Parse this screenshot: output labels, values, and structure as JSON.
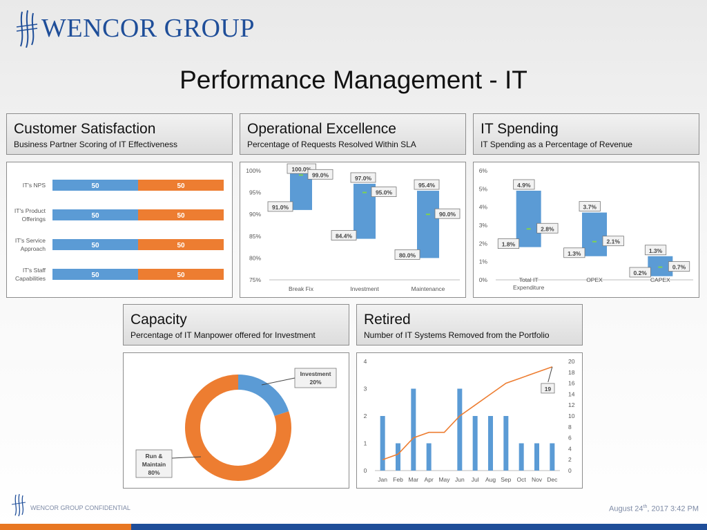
{
  "header": {
    "logo_text": "WENCOR GROUP",
    "title": "Performance Management - IT"
  },
  "cards": {
    "customer": {
      "title": "Customer Satisfaction",
      "subtitle": "Business Partner Scoring of IT Effectiveness"
    },
    "operational": {
      "title": "Operational Excellence",
      "subtitle": "Percentage of Requests Resolved Within SLA"
    },
    "spending": {
      "title": "IT Spending",
      "subtitle": "IT Spending as a Percentage of Revenue"
    },
    "capacity": {
      "title": "Capacity",
      "subtitle": "Percentage of IT Manpower offered for Investment"
    },
    "retired": {
      "title": "Retired",
      "subtitle": "Number of IT Systems Removed from the Portfolio"
    }
  },
  "footer": {
    "confidential": "WENCOR GROUP CONFIDENTIAL",
    "date_prefix": "August 24",
    "date_sup": "th",
    "date_suffix": ", 2017 3:42 PM"
  },
  "colors": {
    "blue": "#5b9bd5",
    "orange": "#ed7d31",
    "brand": "#1f4e99"
  },
  "chart_data": [
    {
      "id": "customer",
      "type": "bar",
      "orientation": "horizontal-stacked",
      "categories": [
        [
          "IT's NPS"
        ],
        [
          "IT's Product",
          "Offerings"
        ],
        [
          "IT's Service",
          "Approach"
        ],
        [
          "IT's Staff",
          "Capabilities"
        ]
      ],
      "series": [
        {
          "values": [
            50,
            50,
            50,
            50
          ],
          "labels": [
            "50",
            "50",
            "50",
            "50"
          ]
        },
        {
          "values": [
            50,
            50,
            50,
            50
          ],
          "labels": [
            "50",
            "50",
            "50",
            "50"
          ]
        }
      ]
    },
    {
      "id": "operational",
      "type": "bar",
      "orientation": "floating-range",
      "ylim": [
        75,
        100
      ],
      "yticks": [
        "75%",
        "80%",
        "85%",
        "90%",
        "95%",
        "100%"
      ],
      "categories": [
        "Break Fix",
        "Investment",
        "Maintenance"
      ],
      "high": [
        100.0,
        97.0,
        95.4
      ],
      "low": [
        91.0,
        84.4,
        80.0
      ],
      "mid": [
        99.0,
        95.0,
        90.0
      ],
      "high_labels": [
        "100.0%",
        "97.0%",
        "95.4%"
      ],
      "low_labels": [
        "91.0%",
        "84.4%",
        "80.0%"
      ],
      "mid_labels": [
        "99.0%",
        "95.0%",
        "90.0%"
      ]
    },
    {
      "id": "spending",
      "type": "bar",
      "orientation": "floating-range",
      "ylim": [
        0,
        6
      ],
      "yticks": [
        "0%",
        "1%",
        "2%",
        "3%",
        "4%",
        "5%",
        "6%"
      ],
      "categories": [
        [
          "Total IT",
          "Expenditure"
        ],
        [
          "OPEX"
        ],
        [
          "CAPEX"
        ]
      ],
      "high": [
        4.9,
        3.7,
        1.3
      ],
      "low": [
        1.8,
        1.3,
        0.2
      ],
      "mid": [
        2.8,
        2.1,
        0.7
      ],
      "high_labels": [
        "4.9%",
        "3.7%",
        "1.3%"
      ],
      "low_labels": [
        "1.8%",
        "1.3%",
        "0.2%"
      ],
      "mid_labels": [
        "2.8%",
        "2.1%",
        "0.7%"
      ]
    },
    {
      "id": "capacity",
      "type": "pie",
      "slices": [
        {
          "label_lines": [
            "Investment",
            "20%"
          ],
          "value": 20
        },
        {
          "label_lines": [
            "Run &",
            "Maintain",
            "80%"
          ],
          "value": 80
        }
      ]
    },
    {
      "id": "retired",
      "type": "bar",
      "categories": [
        "Jan",
        "Feb",
        "Mar",
        "Apr",
        "May",
        "Jun",
        "Jul",
        "Aug",
        "Sep",
        "Oct",
        "Nov",
        "Dec"
      ],
      "bars": [
        2,
        1,
        3,
        1,
        0,
        3,
        2,
        2,
        2,
        1,
        1,
        1
      ],
      "line": [
        2,
        3,
        6,
        7,
        7,
        10,
        12,
        14,
        16,
        17,
        18,
        19
      ],
      "ylim_left": [
        0,
        4
      ],
      "ylim_right": [
        0,
        20
      ],
      "yticks_left": [
        "0",
        "1",
        "2",
        "3",
        "4"
      ],
      "yticks_right": [
        "0",
        "2",
        "4",
        "6",
        "8",
        "10",
        "12",
        "14",
        "16",
        "18",
        "20"
      ],
      "callout": "19"
    }
  ]
}
